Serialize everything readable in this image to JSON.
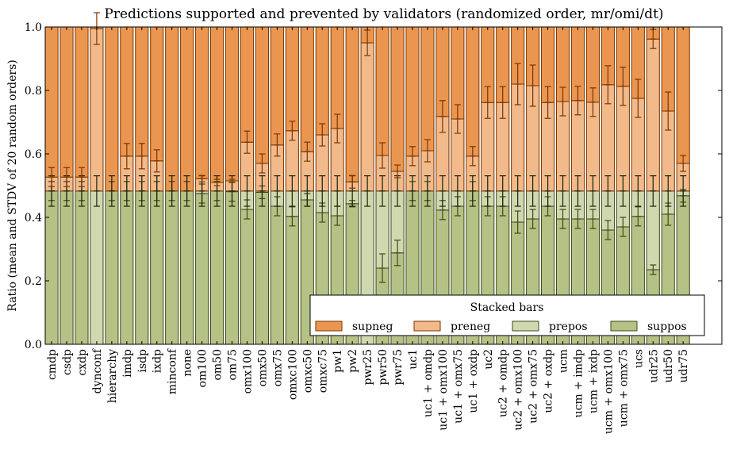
{
  "chart_data": {
    "type": "bar",
    "stacked": true,
    "title": "Predictions supported and prevented by validators (randomized order, mr/omi/dt)",
    "xlabel": "",
    "ylabel": "Ratio (mean and STDV of 20 random orders)",
    "ylim": [
      0.0,
      1.0
    ],
    "yticks": [
      "0.0",
      "0.2",
      "0.4",
      "0.6",
      "0.8",
      "1.0"
    ],
    "grid": false,
    "legend": {
      "title": "Stacked bars",
      "placement": "lower-right",
      "entries": [
        "supneg",
        "preneg",
        "prepos",
        "suppos"
      ]
    },
    "colors": {
      "supneg": "#eb9650",
      "preneg": "#f2b98a",
      "prepos": "#d0d8b0",
      "suppos": "#b5c285"
    },
    "categories": [
      "cmdp",
      "csdp",
      "cxdp",
      "dynconf",
      "hierarchy",
      "imdp",
      "isdp",
      "ixdp",
      "minconf",
      "none",
      "om100",
      "om50",
      "om75",
      "omx100",
      "omx50",
      "omx75",
      "omxc100",
      "omxc50",
      "omxc75",
      "pw1",
      "pw2",
      "pwr25",
      "pwr50",
      "pwr75",
      "uc1",
      "uc1 + omdp",
      "uc1 + omx100",
      "uc1 + omx75",
      "uc1 + oxdp",
      "uc2",
      "uc2 + omdp",
      "uc2 + omx100",
      "uc2 + omx75",
      "uc2 + oxdp",
      "ucm",
      "ucm + imdp",
      "ucm + ixdp",
      "ucm + omx100",
      "ucm + omx75",
      "ucs",
      "udr25",
      "udr50",
      "udr75"
    ],
    "series": [
      {
        "name": "suppos",
        "values": [
          0.483,
          0.483,
          0.483,
          0.0,
          0.483,
          0.483,
          0.483,
          0.483,
          0.483,
          0.483,
          0.475,
          0.483,
          0.481,
          0.425,
          0.479,
          0.435,
          0.403,
          0.455,
          0.415,
          0.405,
          0.443,
          0.0,
          0.24,
          0.288,
          0.483,
          0.483,
          0.423,
          0.435,
          0.483,
          0.435,
          0.435,
          0.385,
          0.395,
          0.435,
          0.395,
          0.395,
          0.395,
          0.36,
          0.37,
          0.403,
          0.235,
          0.41,
          0.468
        ],
        "stdv": [
          0.03,
          0.03,
          0.03,
          0.0,
          0.03,
          0.03,
          0.03,
          0.03,
          0.03,
          0.03,
          0.03,
          0.03,
          0.03,
          0.03,
          0.02,
          0.03,
          0.03,
          0.02,
          0.03,
          0.03,
          0.01,
          0.0,
          0.045,
          0.04,
          0.03,
          0.03,
          0.03,
          0.03,
          0.03,
          0.03,
          0.03,
          0.035,
          0.03,
          0.03,
          0.03,
          0.03,
          0.03,
          0.03,
          0.03,
          0.03,
          0.015,
          0.035,
          0.02
        ]
      },
      {
        "name": "prepos",
        "values": [
          0.0,
          0.0,
          0.0,
          0.483,
          0.0,
          0.0,
          0.0,
          0.0,
          0.0,
          0.0,
          0.008,
          0.0,
          0.002,
          0.058,
          0.004,
          0.048,
          0.08,
          0.028,
          0.068,
          0.078,
          0.04,
          0.483,
          0.243,
          0.195,
          0.0,
          0.0,
          0.06,
          0.048,
          0.0,
          0.048,
          0.048,
          0.098,
          0.088,
          0.048,
          0.088,
          0.088,
          0.088,
          0.123,
          0.113,
          0.08,
          0.248,
          0.073,
          0.015
        ],
        "stdv": [
          0.048,
          0.048,
          0.048,
          0.048,
          0.048,
          0.048,
          0.048,
          0.048,
          0.048,
          0.048,
          0.048,
          0.048,
          0.048,
          0.048,
          0.048,
          0.048,
          0.048,
          0.048,
          0.048,
          0.048,
          0.048,
          0.048,
          0.048,
          0.048,
          0.048,
          0.048,
          0.048,
          0.048,
          0.048,
          0.048,
          0.048,
          0.048,
          0.048,
          0.048,
          0.048,
          0.048,
          0.048,
          0.048,
          0.048,
          0.048,
          0.048,
          0.048,
          0.048
        ]
      },
      {
        "name": "preneg",
        "values": [
          0.044,
          0.044,
          0.044,
          0.512,
          0.0,
          0.11,
          0.11,
          0.095,
          0.0,
          0.0,
          0.039,
          0.027,
          0.032,
          0.154,
          0.087,
          0.145,
          0.19,
          0.124,
          0.177,
          0.197,
          0.029,
          0.467,
          0.112,
          0.062,
          0.11,
          0.127,
          0.235,
          0.227,
          0.11,
          0.279,
          0.279,
          0.337,
          0.332,
          0.279,
          0.282,
          0.285,
          0.28,
          0.335,
          0.33,
          0.292,
          0.479,
          0.252,
          0.087
        ],
        "stdv": [
          0.03,
          0.03,
          0.03,
          0.05,
          0.0,
          0.04,
          0.04,
          0.035,
          0.0,
          0.0,
          0.01,
          0.01,
          0.005,
          0.035,
          0.03,
          0.035,
          0.03,
          0.03,
          0.035,
          0.045,
          0.02,
          0.04,
          0.04,
          0.02,
          0.03,
          0.035,
          0.05,
          0.045,
          0.03,
          0.05,
          0.05,
          0.065,
          0.065,
          0.05,
          0.045,
          0.045,
          0.045,
          0.06,
          0.06,
          0.06,
          0.03,
          0.06,
          0.025
        ]
      },
      {
        "name": "supneg",
        "values": [
          0.473,
          0.473,
          0.473,
          0.005,
          0.517,
          0.407,
          0.407,
          0.422,
          0.517,
          0.517,
          0.478,
          0.49,
          0.485,
          0.363,
          0.43,
          0.372,
          0.327,
          0.393,
          0.34,
          0.32,
          0.488,
          0.05,
          0.405,
          0.455,
          0.407,
          0.39,
          0.282,
          0.29,
          0.407,
          0.238,
          0.238,
          0.18,
          0.185,
          0.238,
          0.235,
          0.232,
          0.237,
          0.182,
          0.187,
          0.225,
          0.038,
          0.265,
          0.43
        ]
      }
    ]
  }
}
